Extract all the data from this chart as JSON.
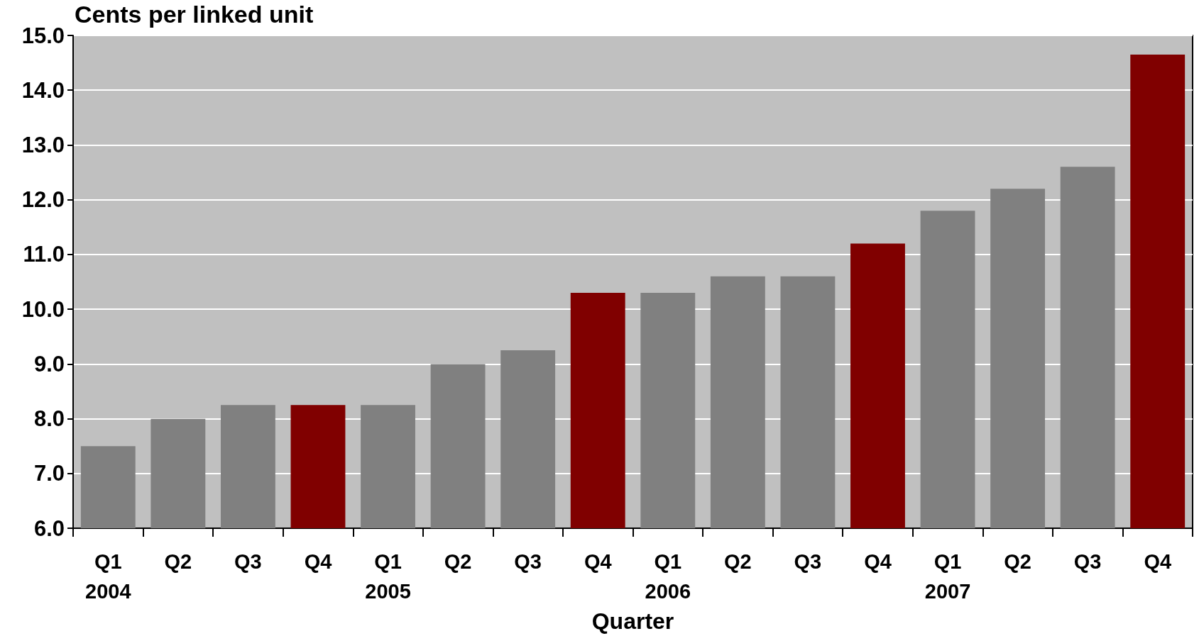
{
  "chart_data": {
    "type": "bar",
    "ylabel": "Cents per linked unit",
    "xlabel": "Quarter",
    "categories": [
      "Q1\n2004",
      "Q2",
      "Q3",
      "Q4",
      "Q1\n2005",
      "Q2",
      "Q3",
      "Q4",
      "Q1\n2006",
      "Q2",
      "Q3",
      "Q4",
      "Q1\n2007",
      "Q2",
      "Q3",
      "Q4"
    ],
    "values": [
      7.5,
      8.0,
      8.25,
      8.25,
      8.25,
      9.0,
      9.25,
      10.3,
      10.3,
      10.6,
      10.6,
      11.2,
      11.8,
      12.2,
      12.6,
      14.65
    ],
    "colors": [
      "#808080",
      "#808080",
      "#808080",
      "#800000",
      "#808080",
      "#808080",
      "#808080",
      "#800000",
      "#808080",
      "#808080",
      "#808080",
      "#800000",
      "#808080",
      "#808080",
      "#808080",
      "#800000"
    ],
    "ylim": [
      6,
      15
    ],
    "yticks": [
      {
        "value": 6,
        "label": "6.0"
      },
      {
        "value": 7,
        "label": "7.0"
      },
      {
        "value": 8,
        "label": "8.0"
      },
      {
        "value": 9,
        "label": "9.0"
      },
      {
        "value": 10,
        "label": "10.0"
      },
      {
        "value": 11,
        "label": "11.0"
      },
      {
        "value": 12,
        "label": "12.0"
      },
      {
        "value": 13,
        "label": "13.0"
      },
      {
        "value": 14,
        "label": "14.0"
      },
      {
        "value": 15,
        "label": "15.0"
      }
    ],
    "grid": "y"
  }
}
